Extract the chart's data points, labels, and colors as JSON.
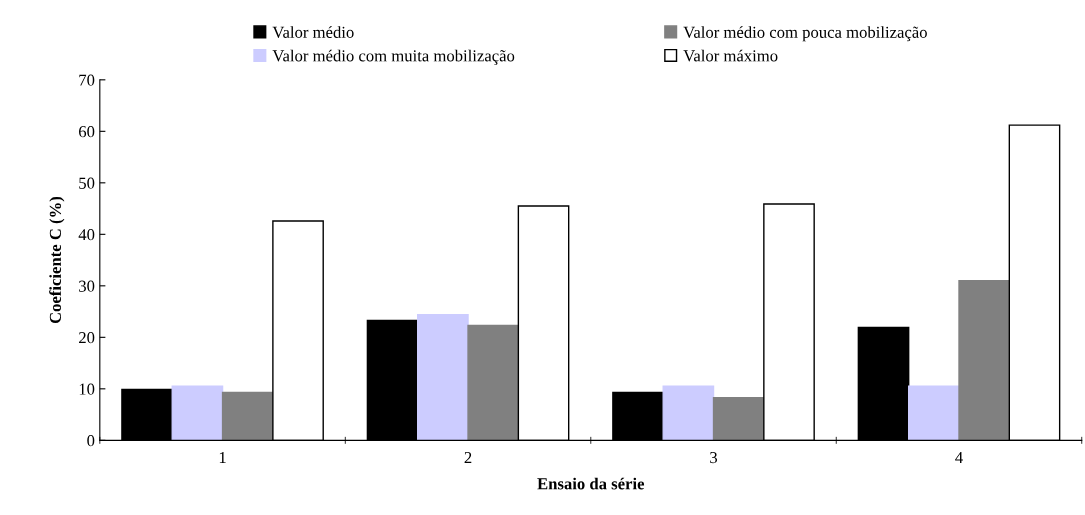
{
  "chart_data": {
    "type": "bar",
    "xlabel": "Ensaio da série",
    "ylabel": "Coeficiente C (%)",
    "categories": [
      "1",
      "2",
      "3",
      "4"
    ],
    "series": [
      {
        "name": "Valor médio",
        "color": "#000000",
        "values": [
          9.9,
          23.3,
          9.3,
          21.9
        ]
      },
      {
        "name": "Valor médio com muita mobilização",
        "color": "#ccccff",
        "values": [
          10.5,
          24.4,
          10.5,
          10.5
        ]
      },
      {
        "name": "Valor médio com pouca mobilização",
        "color": "#808080",
        "values": [
          9.3,
          22.3,
          8.3,
          31.0
        ]
      },
      {
        "name": "Valor máximo",
        "color": "#ffffff",
        "values": [
          42.6,
          45.5,
          45.9,
          61.2
        ]
      }
    ],
    "ylim": [
      0,
      70
    ],
    "yticks": [
      0,
      10,
      20,
      30,
      40,
      50,
      60,
      70
    ],
    "grid": false,
    "legend": "top"
  }
}
